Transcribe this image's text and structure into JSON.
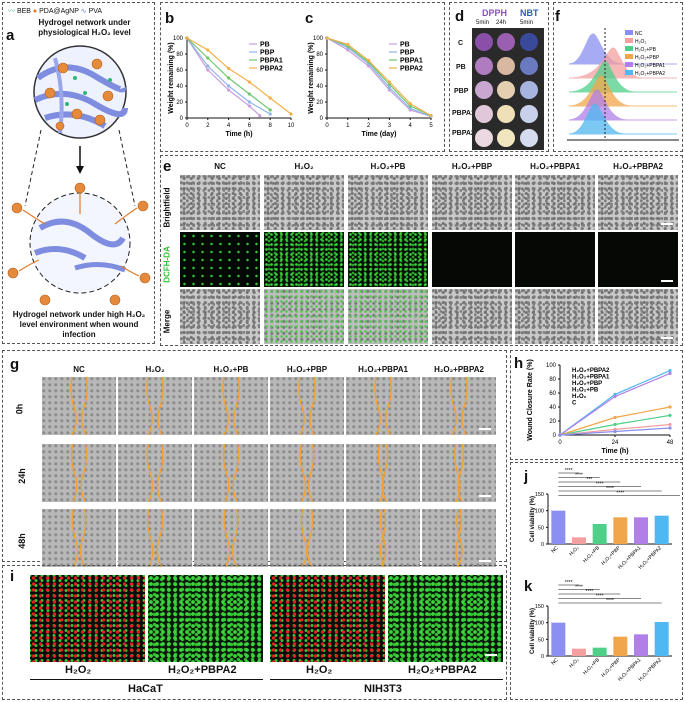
{
  "letters": {
    "a": "a",
    "b": "b",
    "c": "c",
    "d": "d",
    "e": "e",
    "f": "f",
    "g": "g",
    "h": "h",
    "i": "i",
    "j": "j",
    "k": "k"
  },
  "panel_a": {
    "legend": [
      "BEB",
      "PDA@AgNP",
      "PVA"
    ],
    "top_caption": "Hydrogel network under physiological H₂O₂ level",
    "bottom_caption": "Hydrogel network under high H₂O₂ level environment when wound infection"
  },
  "panel_d": {
    "dpph": "DPPH",
    "nbt": "NBT",
    "t1": "5min",
    "t2": "24h",
    "t3": "5min",
    "rows": [
      "C",
      "PB",
      "PBP",
      "PBPA1",
      "PBPA2"
    ]
  },
  "panel_e": {
    "columns": [
      "NC",
      "H₂O₂",
      "H₂O₂+PB",
      "H₂O₂+PBP",
      "H₂O₂+PBPA1",
      "H₂O₂+PBPA2"
    ],
    "rows": [
      "Brightfield",
      "DCFH-DA",
      "Merge"
    ]
  },
  "panel_g": {
    "columns": [
      "NC",
      "H₂O₂",
      "H₂O₂+PB",
      "H₂O₂+PBP",
      "H₂O₂+PBPA1",
      "H₂O₂+PBPA2"
    ],
    "rows": [
      "0h",
      "24h",
      "48h"
    ]
  },
  "panel_i": {
    "labels": [
      "H₂O₂",
      "H₂O₂+PBPA2",
      "H₂O₂",
      "H₂O₂+PBPA2"
    ],
    "cells": [
      "HaCaT",
      "NIH3T3"
    ]
  },
  "panel_f": {
    "legend": [
      "NC",
      "H₂O₂",
      "H₂O₂+PB",
      "H₂O₂+PBP",
      "H₂O₂+PBPA1",
      "H₂O₂+PBPA2"
    ]
  },
  "colors": {
    "PB": "#c9a0dc",
    "PBP": "#8fb6e8",
    "PBPA1": "#6fc76f",
    "PBPA2": "#f2b04a",
    "NC": "#8a8ff0",
    "H2O2": "#f4a0a0",
    "H2O2PB": "#4fd08a",
    "H2O2PBP": "#f2a64a",
    "H2O2PBPA1": "#b07fe8",
    "H2O2PBPA2": "#4fb8f0"
  },
  "chart_data": [
    {
      "id": "b",
      "type": "line",
      "xlabel": "Time (h)",
      "ylabel": "Weight remaining (%)",
      "xticks": [
        0,
        2,
        4,
        6,
        8,
        10
      ],
      "yticks": [
        0,
        20,
        40,
        60,
        80,
        100
      ],
      "ylim": [
        0,
        100
      ],
      "xlim": [
        0,
        10
      ],
      "series": [
        {
          "name": "PB",
          "x": [
            0,
            2,
            4,
            6,
            7
          ],
          "y": [
            100,
            60,
            35,
            15,
            3
          ]
        },
        {
          "name": "PBP",
          "x": [
            0,
            2,
            4,
            6,
            8
          ],
          "y": [
            100,
            65,
            40,
            20,
            5
          ]
        },
        {
          "name": "PBPA1",
          "x": [
            0,
            2,
            4,
            6,
            8
          ],
          "y": [
            100,
            75,
            50,
            30,
            10
          ]
        },
        {
          "name": "PBPA2",
          "x": [
            0,
            2,
            4,
            6,
            8,
            10
          ],
          "y": [
            100,
            85,
            62,
            45,
            25,
            5
          ]
        }
      ]
    },
    {
      "id": "c",
      "type": "line",
      "xlabel": "Time (day)",
      "ylabel": "Weight remaining (%)",
      "xticks": [
        0,
        1,
        2,
        3,
        4,
        5
      ],
      "yticks": [
        0,
        20,
        40,
        60,
        80,
        100
      ],
      "ylim": [
        0,
        100
      ],
      "xlim": [
        0,
        5
      ],
      "series": [
        {
          "name": "PB",
          "x": [
            0,
            1,
            2,
            3,
            4,
            5
          ],
          "y": [
            100,
            85,
            65,
            35,
            10,
            2
          ]
        },
        {
          "name": "PBP",
          "x": [
            0,
            1,
            2,
            3,
            4,
            5
          ],
          "y": [
            100,
            88,
            68,
            38,
            12,
            2
          ]
        },
        {
          "name": "PBPA1",
          "x": [
            0,
            1,
            2,
            3,
            4,
            5
          ],
          "y": [
            100,
            90,
            70,
            42,
            15,
            3
          ]
        },
        {
          "name": "PBPA2",
          "x": [
            0,
            1,
            2,
            3,
            4,
            5
          ],
          "y": [
            100,
            92,
            72,
            45,
            18,
            3
          ]
        }
      ]
    },
    {
      "id": "h",
      "type": "line",
      "xlabel": "Time (h)",
      "ylabel": "Wound Closure Rate (%)",
      "xticks": [
        0,
        24,
        48
      ],
      "yticks": [
        0,
        20,
        40,
        60,
        80,
        100
      ],
      "ylim": [
        0,
        100
      ],
      "xlim": [
        0,
        48
      ],
      "series": [
        {
          "name": "H₂O₂+PBPA2",
          "x": [
            0,
            24,
            48
          ],
          "y": [
            0,
            58,
            92
          ]
        },
        {
          "name": "H₂O₂+PBPA1",
          "x": [
            0,
            24,
            48
          ],
          "y": [
            0,
            55,
            88
          ]
        },
        {
          "name": "H₂O₂+PBP",
          "x": [
            0,
            24,
            48
          ],
          "y": [
            0,
            25,
            40
          ]
        },
        {
          "name": "H₂O₂+PB",
          "x": [
            0,
            24,
            48
          ],
          "y": [
            0,
            15,
            28
          ]
        },
        {
          "name": "H₂O₂",
          "x": [
            0,
            24,
            48
          ],
          "y": [
            0,
            8,
            15
          ]
        },
        {
          "name": "C",
          "x": [
            0,
            24,
            48
          ],
          "y": [
            0,
            5,
            10
          ]
        }
      ]
    },
    {
      "id": "j",
      "type": "bar",
      "ylabel": "Cell viability (%)",
      "categories": [
        "NC",
        "H₂O₂",
        "H₂O₂+PB",
        "H₂O₂+PBP",
        "H₂O₂+PBPA1",
        "H₂O₂+PBPA2"
      ],
      "values": [
        100,
        20,
        60,
        80,
        80,
        85
      ],
      "yticks": [
        0,
        50,
        100,
        150
      ],
      "ylim": [
        0,
        150
      ],
      "significance": [
        "****",
        "****",
        "***",
        "****",
        "****",
        "****"
      ]
    },
    {
      "id": "k",
      "type": "bar",
      "ylabel": "Cell viability (%)",
      "categories": [
        "NC",
        "H₂O₂",
        "H₂O₂+PB",
        "H₂O₂+PBP",
        "H₂O₂+PBPA1",
        "H₂O₂+PBPA2"
      ],
      "values": [
        100,
        22,
        25,
        58,
        65,
        102
      ],
      "yticks": [
        0,
        50,
        100,
        150
      ],
      "ylim": [
        0,
        150
      ],
      "significance": [
        "****",
        "****",
        "****",
        "****",
        "****"
      ]
    }
  ]
}
